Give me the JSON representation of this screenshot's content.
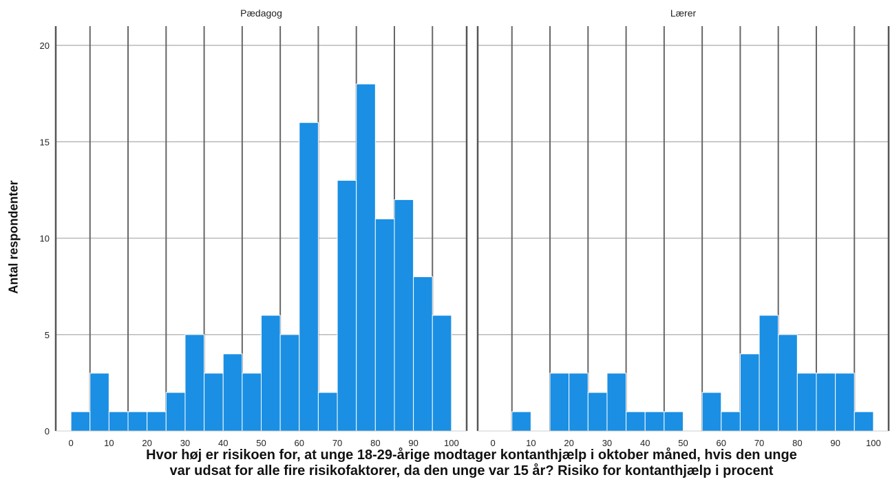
{
  "chart_data": {
    "type": "bar",
    "subtype": "histogram",
    "ylabel": "Antal respondenter",
    "xlabel_line1": "Hvor høj er risikoen for, at unge 18-29-årige modtager kontanthjælp i oktober måned, hvis den unge",
    "xlabel_line2": "var udsat for alle fire risikofaktorer, da den unge var 15 år? Risiko for kontanthjælp i procent",
    "ylim": [
      0,
      21
    ],
    "yticks": [
      "0",
      "5",
      "10",
      "15",
      "20"
    ],
    "xlim": [
      -4,
      104
    ],
    "xticks": [
      "0",
      "10",
      "20",
      "30",
      "40",
      "50",
      "60",
      "70",
      "80",
      "90",
      "100"
    ],
    "bin_width": 5,
    "grid": true,
    "bar_color": "#1a8fe3",
    "panels": [
      {
        "title": "Pædagog",
        "bins": [
          0,
          5,
          10,
          15,
          20,
          25,
          30,
          35,
          40,
          45,
          50,
          55,
          60,
          65,
          70,
          75,
          80,
          85,
          90,
          95
        ],
        "values": [
          1,
          3,
          1,
          1,
          1,
          2,
          5,
          3,
          4,
          3,
          6,
          5,
          16,
          2,
          13,
          18,
          11,
          12,
          8,
          6
        ]
      },
      {
        "title": "Lærer",
        "bins": [
          5,
          15,
          20,
          25,
          30,
          35,
          40,
          45,
          55,
          60,
          65,
          70,
          75,
          80,
          85,
          90,
          95
        ],
        "values": [
          1,
          3,
          3,
          2,
          3,
          1,
          1,
          1,
          2,
          1,
          4,
          6,
          5,
          3,
          3,
          3,
          1
        ]
      }
    ]
  }
}
